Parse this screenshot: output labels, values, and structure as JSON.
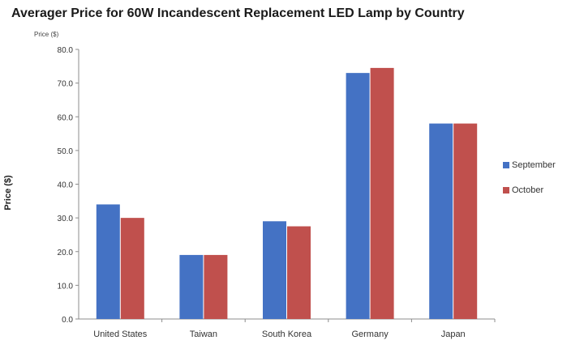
{
  "chart_data": {
    "type": "bar",
    "title": "Averager Price for 60W Incandescent Replacement LED Lamp by Country",
    "units_note": "Price ($)",
    "ylabel": "Price ($)",
    "xlabel": "",
    "categories": [
      "United States",
      "Taiwan",
      "South Korea",
      "Germany",
      "Japan"
    ],
    "series": [
      {
        "name": "September",
        "color": "#4472C4",
        "values": [
          34.0,
          19.0,
          29.0,
          73.0,
          58.0
        ]
      },
      {
        "name": "October",
        "color": "#C0504D",
        "values": [
          30.0,
          19.0,
          27.5,
          74.5,
          58.0
        ]
      }
    ],
    "ylim": [
      0,
      80
    ],
    "yticks": [
      "0.0",
      "10.0",
      "20.0",
      "30.0",
      "40.0",
      "50.0",
      "60.0",
      "70.0",
      "80.0"
    ],
    "grid": false,
    "legend_position": "right"
  }
}
